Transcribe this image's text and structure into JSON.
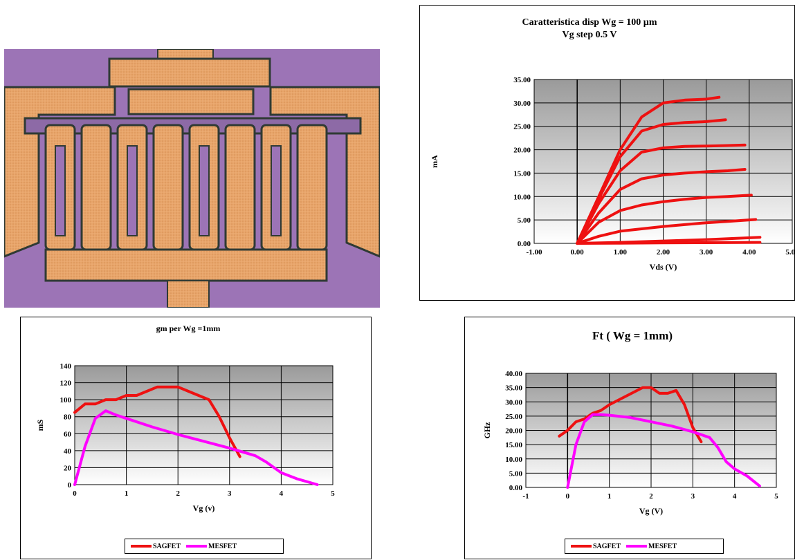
{
  "chart_data": [
    {
      "type": "line",
      "title": "Caratteristica disp Wg = 100 µm",
      "subtitle": "Vg step 0.5 V",
      "xlabel": "Vds (V)",
      "ylabel": "mA",
      "xlim": [
        -1,
        5
      ],
      "ylim": [
        0,
        35
      ],
      "xticks": [
        "-1.00",
        "0.00",
        "1.00",
        "2.00",
        "3.00",
        "4.00",
        "5.00"
      ],
      "yticks": [
        "0.00",
        "5.00",
        "10.00",
        "15.00",
        "20.00",
        "25.00",
        "30.00",
        "35.00"
      ],
      "grid": true,
      "legend": "none",
      "line_color": "#ee1111",
      "series": [
        {
          "x": [
            0,
            0.5,
            1,
            1.5,
            2,
            2.5,
            3,
            3.3
          ],
          "y": [
            0,
            10,
            20,
            27,
            30,
            30.6,
            30.8,
            31.2
          ]
        },
        {
          "x": [
            0,
            0.5,
            1,
            1.5,
            2,
            2.5,
            3,
            3.45
          ],
          "y": [
            0,
            9.5,
            18.5,
            24,
            25.4,
            25.8,
            26,
            26.4
          ]
        },
        {
          "x": [
            0,
            0.5,
            1,
            1.5,
            2,
            2.5,
            3,
            3.5,
            3.9
          ],
          "y": [
            0,
            8.5,
            15.5,
            19.5,
            20.4,
            20.7,
            20.8,
            20.9,
            21
          ]
        },
        {
          "x": [
            0,
            0.5,
            1,
            1.5,
            2,
            2.5,
            3,
            3.5,
            3.9
          ],
          "y": [
            0,
            6.5,
            11.5,
            13.8,
            14.6,
            15,
            15.3,
            15.5,
            15.8
          ]
        },
        {
          "x": [
            0,
            0.5,
            1,
            1.5,
            2,
            2.5,
            3,
            3.5,
            4.05
          ],
          "y": [
            0,
            4.5,
            7,
            8.2,
            8.9,
            9.4,
            9.8,
            10,
            10.3
          ]
        },
        {
          "x": [
            0,
            0.5,
            1,
            1.5,
            2,
            2.5,
            3,
            3.5,
            4.15
          ],
          "y": [
            0,
            1.5,
            2.6,
            3.1,
            3.6,
            4,
            4.4,
            4.7,
            5.1
          ]
        },
        {
          "x": [
            0,
            1,
            2,
            3,
            4.25
          ],
          "y": [
            0,
            0.2,
            0.5,
            0.8,
            1.3
          ]
        },
        {
          "x": [
            0,
            1,
            2,
            3,
            4.25
          ],
          "y": [
            0,
            0.05,
            0.1,
            0.15,
            0.2
          ]
        }
      ]
    },
    {
      "type": "line",
      "title": "gm per Wg =1mm",
      "xlabel": "Vg (v)",
      "ylabel": "mS",
      "xlim": [
        0,
        5
      ],
      "ylim": [
        0,
        140
      ],
      "xticks": [
        "0",
        "1",
        "2",
        "3",
        "4",
        "5"
      ],
      "yticks": [
        "0",
        "20",
        "40",
        "60",
        "80",
        "100",
        "120",
        "140"
      ],
      "grid": true,
      "legend": "bottom",
      "series": [
        {
          "name": "SAGFET",
          "color": "#ee1111",
          "x": [
            0,
            0.2,
            0.4,
            0.6,
            0.8,
            1.0,
            1.2,
            1.4,
            1.6,
            1.8,
            2.0,
            2.2,
            2.4,
            2.6,
            2.8,
            3.0,
            3.2
          ],
          "y": [
            85,
            95,
            95,
            100,
            100,
            105,
            105,
            110,
            115,
            115,
            115,
            110,
            105,
            100,
            80,
            55,
            33
          ]
        },
        {
          "name": "MESFET",
          "color": "#ff00ff",
          "x": [
            0,
            0.2,
            0.4,
            0.6,
            0.8,
            1.0,
            1.5,
            2.0,
            2.5,
            3.0,
            3.5,
            3.7,
            4.0,
            4.3,
            4.7
          ],
          "y": [
            0,
            45,
            78,
            87,
            82,
            78,
            68,
            59,
            51,
            43,
            34,
            27,
            14,
            7,
            0
          ]
        }
      ]
    },
    {
      "type": "line",
      "title": "Ft ( Wg = 1mm)",
      "xlabel": "Vg (V)",
      "ylabel": "GHz",
      "xlim": [
        -1,
        5
      ],
      "ylim": [
        0,
        40
      ],
      "xticks": [
        "-1",
        "0",
        "1",
        "2",
        "3",
        "4",
        "5"
      ],
      "yticks": [
        "0.00",
        "5.00",
        "10.00",
        "15.00",
        "20.00",
        "25.00",
        "30.00",
        "35.00",
        "40.00"
      ],
      "grid": true,
      "legend": "bottom",
      "series": [
        {
          "name": "SAGFET",
          "color": "#ee1111",
          "x": [
            -0.2,
            0,
            0.2,
            0.4,
            0.6,
            0.8,
            1.0,
            1.4,
            1.8,
            2.0,
            2.2,
            2.4,
            2.6,
            2.8,
            3.0,
            3.2
          ],
          "y": [
            18,
            20,
            23,
            24,
            26,
            27,
            29,
            32,
            35,
            35,
            33,
            33,
            34,
            29,
            21,
            16
          ]
        },
        {
          "name": "MESFET",
          "color": "#ff00ff",
          "x": [
            0,
            0.2,
            0.4,
            0.6,
            0.8,
            1.0,
            1.5,
            2.0,
            2.5,
            3.0,
            3.4,
            3.6,
            3.8,
            4.0,
            4.3,
            4.6
          ],
          "y": [
            0,
            15,
            23,
            25.5,
            25.5,
            25.3,
            24.5,
            23,
            21.5,
            19.5,
            17.5,
            14,
            9,
            6.5,
            4,
            0.5
          ]
        }
      ]
    }
  ],
  "photo": {
    "colors": {
      "background": "#9c74b6",
      "metal": "#e8a56a",
      "outline": "#2f3a34"
    }
  }
}
